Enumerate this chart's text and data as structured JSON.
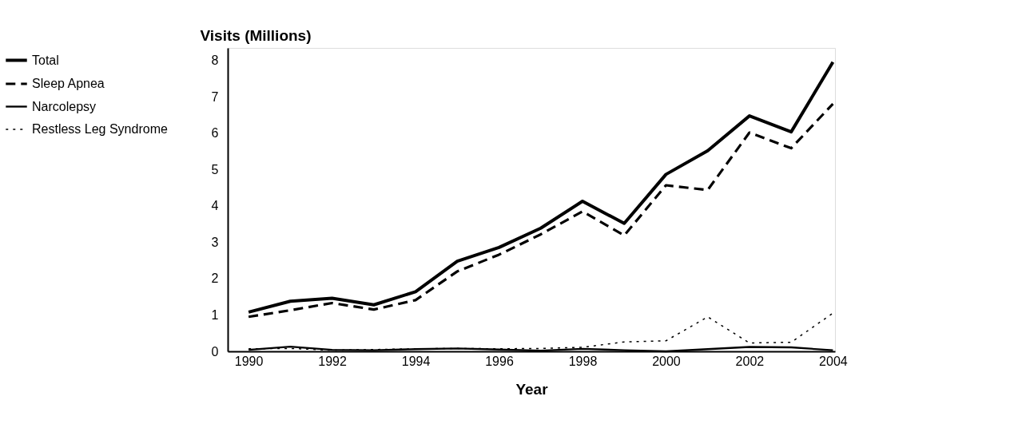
{
  "chart_data": {
    "type": "line",
    "xlabel": "Year",
    "ylabel": "Visits (Millions)",
    "x": [
      1990,
      1991,
      1992,
      1993,
      1994,
      1995,
      1996,
      1997,
      1998,
      1999,
      2000,
      2001,
      2002,
      2003,
      2004
    ],
    "xlim": [
      1989.5,
      2004.05
    ],
    "xticks": [
      1990,
      1992,
      1994,
      1996,
      1998,
      2000,
      2002,
      2004
    ],
    "ylim": [
      0,
      8.35
    ],
    "yticks": [
      0,
      1,
      2,
      3,
      4,
      5,
      6,
      7,
      8
    ],
    "grid": false,
    "legend": "left",
    "marker": "none",
    "series": [
      {
        "name": "Total",
        "color": "#000000",
        "line_style": "solid",
        "values": [
          1.08,
          1.38,
          1.46,
          1.28,
          1.64,
          2.48,
          2.86,
          3.39,
          4.13,
          3.52,
          4.87,
          5.52,
          6.48,
          6.04,
          7.96
        ]
      },
      {
        "name": "Sleep Apnea",
        "color": "#000000",
        "line_style": "dashed",
        "values": [
          0.95,
          1.13,
          1.33,
          1.15,
          1.41,
          2.2,
          2.66,
          3.22,
          3.85,
          3.19,
          4.57,
          4.44,
          6.02,
          5.59,
          6.81
        ]
      },
      {
        "name": "Narcolepsy",
        "color": "#000000",
        "line_style": "solid",
        "values": [
          0.04,
          0.13,
          0.04,
          0.03,
          0.06,
          0.08,
          0.05,
          0.02,
          0.07,
          0.03,
          0.0,
          0.06,
          0.12,
          0.11,
          0.03
        ]
      },
      {
        "name": "Restless Leg Syndrome",
        "color": "#000000",
        "line_style": "dotted",
        "values": [
          0.07,
          0.08,
          0.03,
          0.05,
          0.07,
          0.08,
          0.07,
          0.08,
          0.11,
          0.26,
          0.29,
          0.95,
          0.23,
          0.25,
          1.05
        ]
      }
    ]
  }
}
